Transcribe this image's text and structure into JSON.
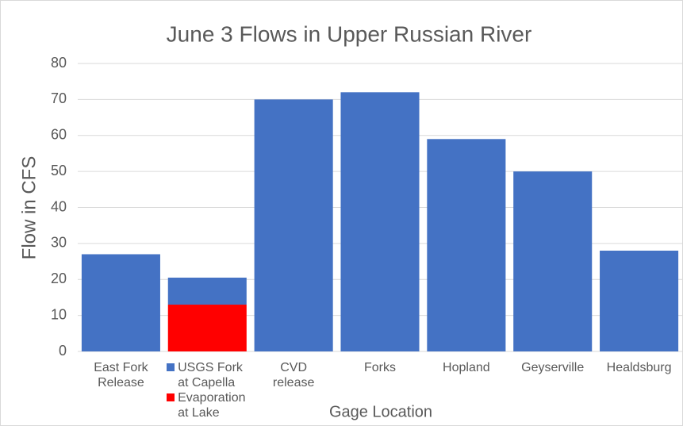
{
  "chart_data": {
    "type": "stacked_bar",
    "title": "June 3 Flows in Upper Russian River",
    "x_label": "Gage Location",
    "y_label": "Flow in CFS",
    "categories": [
      "East Fork Release",
      "USGS Fork at Capella",
      "CVD release",
      "Forks",
      "Hopland",
      "Geyserville",
      "Healdsburg"
    ],
    "series": [
      {
        "name": "Evaporation at Lake",
        "color": "#ff0000",
        "values": [
          null,
          13,
          null,
          null,
          null,
          null,
          null
        ]
      },
      {
        "color": "#4472c4",
        "values": [
          27,
          7.5,
          70,
          72,
          59,
          50,
          28
        ]
      }
    ],
    "ylim": [
      0,
      80
    ],
    "yticks": [
      0,
      10,
      20,
      30,
      40,
      50,
      60,
      70,
      80
    ],
    "grid": true
  }
}
